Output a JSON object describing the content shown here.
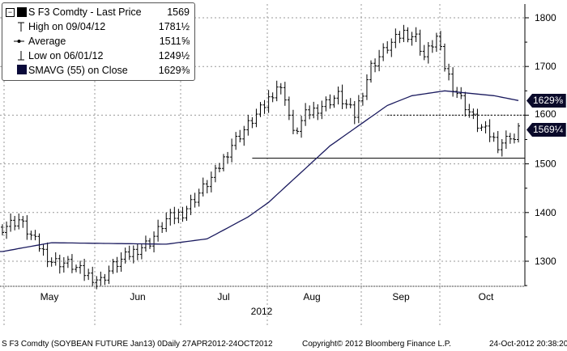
{
  "legend": {
    "title": "S F3 Comdty - Last Price",
    "last_price": "1569",
    "high_label": "High on 09/04/12",
    "high_value": "1781½",
    "avg_label": "Average",
    "avg_value": "1511⅝",
    "low_label": "Low on 06/01/12",
    "low_value": "1249½",
    "sma_label": "SMAVG (55) on Close",
    "sma_value": "1629⅜"
  },
  "tags": {
    "sma": "1629⅜",
    "ref": "1600",
    "last": "1569¼"
  },
  "footer": {
    "left": "S F3 Comdty (SOYBEAN FUTURE   Jan13) 0Daily 27APR2012-24OCT2012",
    "center": "Copyright© 2012 Bloomberg Finance L.P.",
    "right": "24-Oct-2012 20:38:20"
  },
  "colors": {
    "bars": "#000000",
    "sma": "#1a1a5e",
    "tag_bg": "#0a0a2a"
  },
  "chart_data": {
    "type": "ohlc-bar",
    "title": "S F3 Comdty - Last Price",
    "xlabel": "2012",
    "x_ticks": [
      "May",
      "Jun",
      "Jul",
      "Aug",
      "Sep",
      "Oct"
    ],
    "y_ticks": [
      1300,
      1400,
      1500,
      1600,
      1700,
      1800
    ],
    "ylim": [
      1180,
      1830
    ],
    "trading_days": 127,
    "price_path": [
      [
        0,
        1370
      ],
      [
        4,
        1385
      ],
      [
        8,
        1340
      ],
      [
        12,
        1300
      ],
      [
        16,
        1295
      ],
      [
        20,
        1275
      ],
      [
        24,
        1260
      ],
      [
        27,
        1290
      ],
      [
        32,
        1320
      ],
      [
        36,
        1340
      ],
      [
        40,
        1385
      ],
      [
        44,
        1400
      ],
      [
        48,
        1440
      ],
      [
        52,
        1480
      ],
      [
        56,
        1540
      ],
      [
        60,
        1580
      ],
      [
        64,
        1620
      ],
      [
        67,
        1660
      ],
      [
        69,
        1640
      ],
      [
        71,
        1560
      ],
      [
        74,
        1600
      ],
      [
        78,
        1620
      ],
      [
        82,
        1640
      ],
      [
        86,
        1600
      ],
      [
        90,
        1700
      ],
      [
        94,
        1740
      ],
      [
        98,
        1770
      ],
      [
        101,
        1760
      ],
      [
        103,
        1720
      ],
      [
        106,
        1760
      ],
      [
        108,
        1700
      ],
      [
        110,
        1660
      ],
      [
        113,
        1620
      ],
      [
        116,
        1580
      ],
      [
        119,
        1560
      ],
      [
        121,
        1540
      ],
      [
        123,
        1550
      ],
      [
        124,
        1560
      ],
      [
        125,
        1550
      ],
      [
        126,
        1569
      ]
    ],
    "sma_path": [
      [
        0,
        1320
      ],
      [
        12,
        1338
      ],
      [
        40,
        1335
      ],
      [
        50,
        1346
      ],
      [
        60,
        1391
      ],
      [
        65,
        1421
      ],
      [
        80,
        1537
      ],
      [
        94,
        1620
      ],
      [
        100,
        1640
      ],
      [
        108,
        1650
      ],
      [
        120,
        1640
      ],
      [
        126,
        1630
      ]
    ],
    "average_line": 1511.625,
    "average_from_day": 61,
    "reference_line": 1600,
    "last": 1569.25
  }
}
